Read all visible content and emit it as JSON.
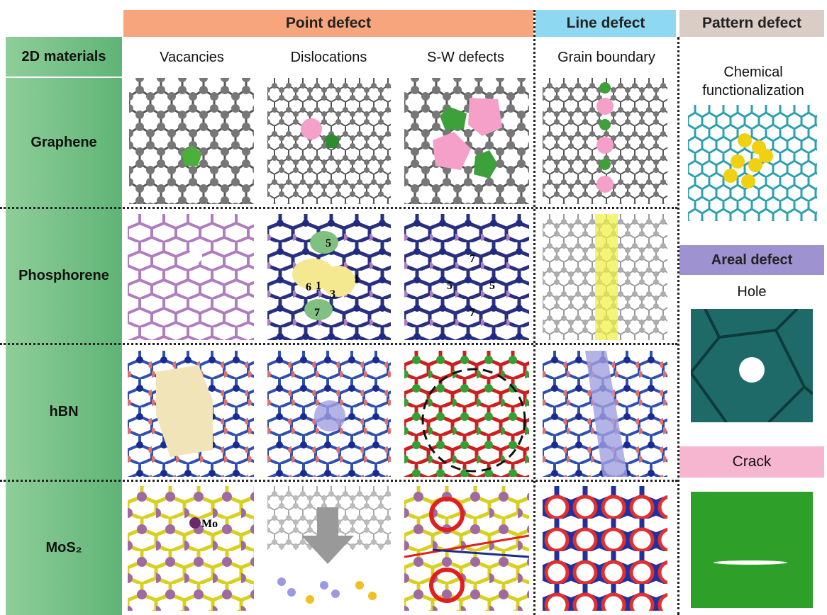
{
  "groups": [
    "Point defect",
    "Line defect",
    "Pattern defect"
  ],
  "columns": [
    "2D materials",
    "Vacancies",
    "Dislocations",
    "S-W defects",
    "Grain boundary"
  ],
  "rows": [
    "Graphene",
    "Phosphorene",
    "hBN",
    "MoS₂"
  ],
  "pattern_column": {
    "chemical": "Chemical functionalization",
    "areal": "Areal defect",
    "hole": "Hole",
    "crack": "Crack"
  },
  "image_labels": {
    "phosphorene_dislocations": [
      "5",
      "6",
      "1",
      "3",
      "7",
      "1"
    ],
    "phosphorene_sw": [
      "7",
      "5",
      "5",
      "7"
    ],
    "mos2_vacancies": "Mo"
  }
}
